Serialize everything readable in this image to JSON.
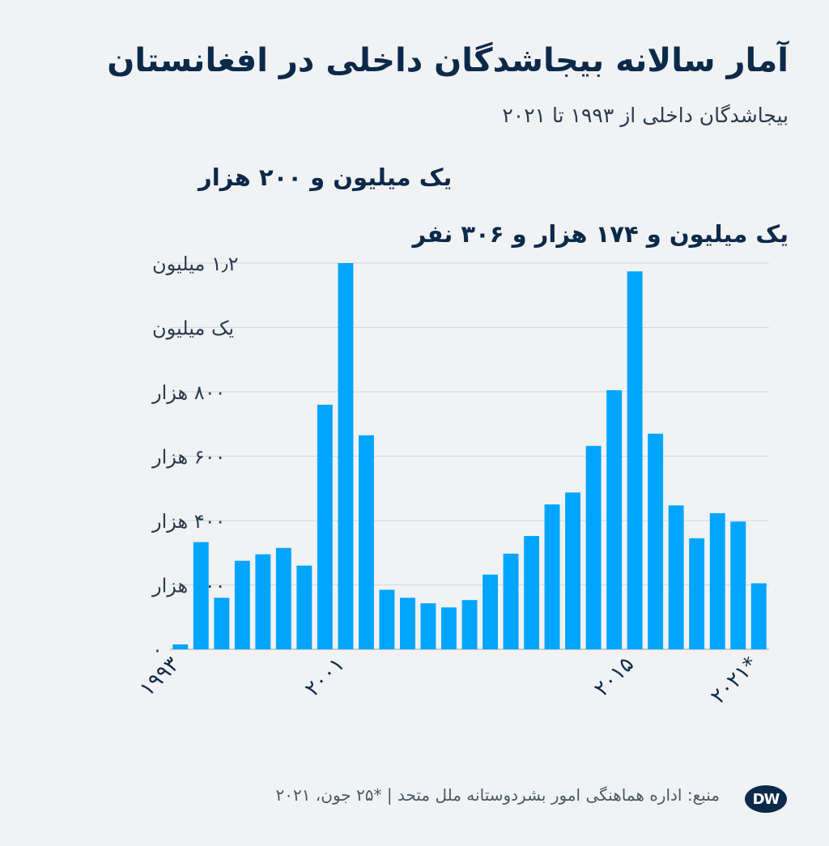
{
  "header": {
    "title": "آمار سالانه بیجاشدگان داخلی در افغانستان",
    "subtitle": "بیجاشدگان داخلی از ۱۹۹۳ تا ۲۰۲۱"
  },
  "annotations": {
    "peak_2001": "یک میلیون و ۲۰۰ هزار",
    "peak_2014": "یک میلیون و ۱۷۴ هزار و ۳۰۶ نفر"
  },
  "footer": {
    "source": "منبع: اداره هماهنگی امور بشردوستانه ملل متحد | *۲۵ جون، ۲۰۲۱",
    "logo": "DW"
  },
  "colors": {
    "bar": "#00a5ff",
    "text": "#0b2a4a",
    "grid": "#d4d7dc",
    "background": "#f1f2f4"
  },
  "chart_data": {
    "type": "bar",
    "title": "آمار سالانه بیجاشدگان داخلی در افغانستان",
    "subtitle": "بیجاشدگان داخلی از ۱۹۹۳ تا ۲۰۲۱",
    "xlabel": "",
    "ylabel": "",
    "categories": [
      "1993",
      "1994",
      "1995",
      "1996",
      "1997",
      "1998",
      "1999",
      "2000",
      "2001",
      "2002",
      "2003",
      "2004",
      "2005",
      "2006",
      "2007",
      "2008",
      "2009",
      "2010",
      "2011",
      "2012",
      "2013",
      "2014",
      "2015",
      "2016",
      "2017",
      "2018",
      "2019",
      "2020",
      "2021*"
    ],
    "values": [
      15000,
      333000,
      160000,
      275000,
      295000,
      315000,
      260000,
      760000,
      1200000,
      665000,
      185000,
      160000,
      143000,
      130000,
      153000,
      232000,
      297000,
      352000,
      450000,
      487000,
      632000,
      805000,
      1174306,
      670000,
      447000,
      345000,
      423000,
      397000,
      205000
    ],
    "ylim": [
      0,
      1200000
    ],
    "yticks": [
      {
        "value": 0,
        "label": "۰"
      },
      {
        "value": 200000,
        "label": "۲۰۰ هزار"
      },
      {
        "value": 400000,
        "label": "۴۰۰ هزار"
      },
      {
        "value": 600000,
        "label": "۶۰۰ هزار"
      },
      {
        "value": 800000,
        "label": "۸۰۰ هزار"
      },
      {
        "value": 1000000,
        "label": "یک میلیون"
      },
      {
        "value": 1200000,
        "label": "۱٫۲ میلیون"
      }
    ],
    "xticks": [
      {
        "index": 0,
        "label": "۱۹۹۳"
      },
      {
        "index": 8,
        "label": "۲۰۰۱"
      },
      {
        "index": 22,
        "label": "۲۰۱۵"
      },
      {
        "index": 28,
        "label": "۲۰۲۱*"
      }
    ],
    "grid": true,
    "legend": "none"
  }
}
